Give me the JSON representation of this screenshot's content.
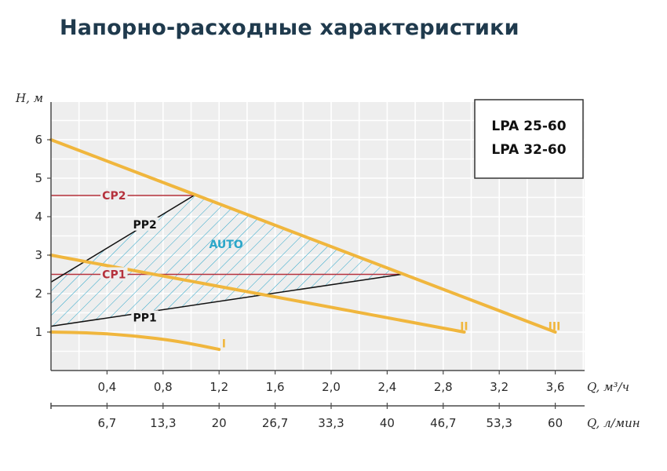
{
  "chart_data": {
    "type": "line",
    "title": "Напорно-расходные характеристики",
    "ylabel": "H, м",
    "xlabel": "Q, м³/ч",
    "x2label": "Q, л/мин",
    "xlim": [
      0,
      3.8
    ],
    "ylim": [
      0,
      7
    ],
    "grid": true,
    "y_ticks": [
      "1",
      "2",
      "3",
      "4",
      "5",
      "6"
    ],
    "x_ticks": [
      {
        "value": 0.4,
        "label": "0,4"
      },
      {
        "value": 0.8,
        "label": "0,8"
      },
      {
        "value": 1.2,
        "label": "1,2"
      },
      {
        "value": 1.6,
        "label": "1,6"
      },
      {
        "value": 2.0,
        "label": "2,0"
      },
      {
        "value": 2.4,
        "label": "2,4"
      },
      {
        "value": 2.8,
        "label": "2,8"
      },
      {
        "value": 3.2,
        "label": "3,2"
      },
      {
        "value": 3.6,
        "label": "3,6"
      }
    ],
    "x2_ticks": [
      {
        "value": 0.4,
        "label": "6,7"
      },
      {
        "value": 0.8,
        "label": "13,3"
      },
      {
        "value": 1.2,
        "label": "20"
      },
      {
        "value": 1.6,
        "label": "26,7"
      },
      {
        "value": 2.0,
        "label": "33,3"
      },
      {
        "value": 2.4,
        "label": "40"
      },
      {
        "value": 2.8,
        "label": "46,7"
      },
      {
        "value": 3.2,
        "label": "53,3"
      },
      {
        "value": 3.6,
        "label": "60"
      }
    ],
    "speed_curves": [
      {
        "name": "I",
        "color": "#f0b63d",
        "points": [
          [
            0,
            1.0
          ],
          [
            0.3,
            0.98
          ],
          [
            0.6,
            0.9
          ],
          [
            0.9,
            0.77
          ],
          [
            1.2,
            0.55
          ]
        ],
        "label_at": [
          1.22,
          0.6
        ]
      },
      {
        "name": "II",
        "color": "#f0b63d",
        "points": [
          [
            0,
            3.0
          ],
          [
            2.95,
            1.0
          ]
        ],
        "label_at": [
          2.92,
          1.05
        ]
      },
      {
        "name": "III",
        "color": "#f0b63d",
        "points": [
          [
            0,
            6.0
          ],
          [
            3.6,
            1.0
          ]
        ],
        "label_at": [
          3.55,
          1.05
        ]
      }
    ],
    "control_lines": [
      {
        "name": "CP2",
        "type": "constant",
        "color": "#b5313c",
        "points": [
          [
            0,
            4.55
          ],
          [
            1.02,
            4.55
          ]
        ],
        "label_at": [
          0.45,
          4.55
        ]
      },
      {
        "name": "CP1",
        "type": "constant",
        "color": "#b5313c",
        "points": [
          [
            0,
            2.5
          ],
          [
            2.5,
            2.5
          ]
        ],
        "label_at": [
          0.45,
          2.5
        ]
      },
      {
        "name": "PP2",
        "type": "proportional",
        "color": "#111111",
        "points": [
          [
            0,
            2.3
          ],
          [
            1.02,
            4.55
          ]
        ],
        "label_at": [
          0.67,
          3.8
        ]
      },
      {
        "name": "PP1",
        "type": "proportional",
        "color": "#111111",
        "points": [
          [
            0,
            1.15
          ],
          [
            2.5,
            2.5
          ]
        ],
        "label_at": [
          0.67,
          1.38
        ]
      }
    ],
    "auto_region": {
      "name": "AUTO",
      "color": "#2aa6c9",
      "polygon": [
        [
          0,
          1.15
        ],
        [
          0,
          2.3
        ],
        [
          1.02,
          4.55
        ],
        [
          2.5,
          2.5
        ]
      ],
      "label_at": [
        1.25,
        3.18
      ]
    },
    "models": [
      "LPA 25-60",
      "LPA 32-60"
    ]
  }
}
